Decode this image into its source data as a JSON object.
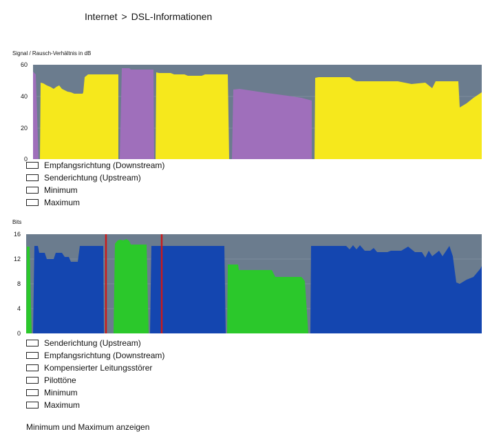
{
  "breadcrumb": {
    "part1": "Internet",
    "sep": ">",
    "part2": "DSL-Informationen"
  },
  "snr_chart": {
    "title": "Signal / Rausch-Verhältnis in dB",
    "yticks": [
      "60",
      "40",
      "20",
      "0"
    ],
    "legend": [
      "Empfangsrichtung (Downstream)",
      "Senderichtung (Upstream)",
      "Minimum",
      "Maximum"
    ],
    "colors": {
      "downstream": "#f6e81c",
      "upstream": "#9f6fbb",
      "background": "#6b7c8e"
    }
  },
  "bits_chart": {
    "title": "Bits",
    "yticks": [
      "16",
      "12",
      "8",
      "4",
      "0"
    ],
    "legend": [
      "Senderichtung (Upstream)",
      "Empfangsrichtung (Downstream)",
      "Kompensierter Leitungsstörer",
      "Pilottöne",
      "Minimum",
      "Maximum"
    ],
    "colors": {
      "downstream": "#1446b0",
      "upstream": "#2bc82b",
      "pilot": "#cc1a1a",
      "background": "#6b7c8e"
    }
  },
  "footer": {
    "toggle_label": "Minimum und Maximum anzeigen"
  }
}
